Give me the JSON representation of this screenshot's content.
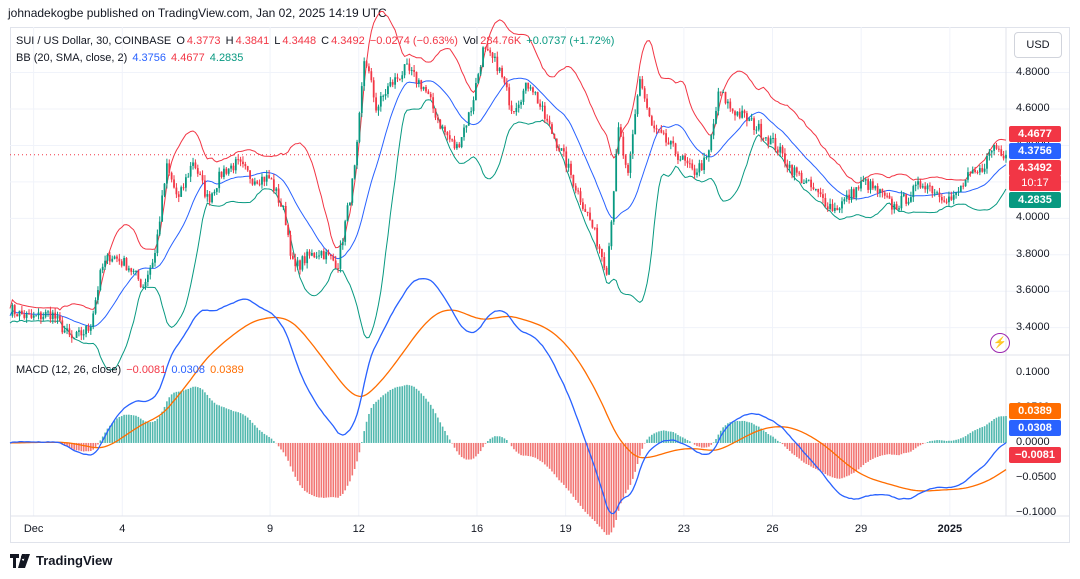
{
  "header": "johnadekogbe published on TradingView.com, Jan 02, 2025 14:19 UTC",
  "legend_main": {
    "symbol": "SUI / US Dollar, 30, COINBASE",
    "o_label": "O",
    "o": "4.3773",
    "h_label": "H",
    "h": "4.3841",
    "l_label": "L",
    "l": "4.3448",
    "c_label": "C",
    "c": "4.3492",
    "change": "−0.0274 (−0.63%)",
    "vol_label": "Vol",
    "vol": "284.76K",
    "vol_change": "+0.0737 (+1.72%)"
  },
  "legend_bb": {
    "label": "BB (20, SMA, close, 2)",
    "basis": "4.3756",
    "upper": "4.4677",
    "lower": "4.2835"
  },
  "legend_macd": {
    "label": "MACD (12, 26, close)",
    "hist": "−0.0081",
    "macd": "0.0308",
    "signal": "0.0389"
  },
  "currency_button": "USD",
  "price_badges": [
    {
      "text": "4.4677",
      "color": "#f23645"
    },
    {
      "text": "4.3756",
      "color": "#2962ff"
    },
    {
      "text": "4.3492",
      "color": "#f23645"
    },
    {
      "text": "10:17",
      "color": "#f23645"
    },
    {
      "text": "4.2835",
      "color": "#089981"
    }
  ],
  "macd_badges": [
    {
      "text": "0.0389",
      "color": "#ff6d00"
    },
    {
      "text": "0.0308",
      "color": "#2962ff"
    },
    {
      "text": "−0.0081",
      "color": "#f23645"
    }
  ],
  "footer": "TradingView",
  "colors": {
    "up": "#089981",
    "down": "#f23645",
    "bb_upper": "#f23645",
    "bb_lower": "#089981",
    "bb_basis": "#2962ff",
    "macd": "#2962ff",
    "signal": "#ff6d00"
  },
  "chart_data": [
    {
      "type": "candlestick",
      "title": "SUI / US Dollar, 30, COINBASE",
      "ylim": [
        3.25,
        5.05
      ],
      "y_ticks": [
        "4.8000",
        "4.6000",
        "4.4000",
        "4.2000",
        "4.0000",
        "3.8000",
        "3.6000",
        "3.4000"
      ],
      "y_tick_values": [
        4.8,
        4.6,
        4.4,
        4.2,
        4.0,
        3.8,
        3.6,
        3.4
      ],
      "x_ticks": [
        "Dec",
        "4",
        "9",
        "12",
        "16",
        "19",
        "23",
        "26",
        "29",
        "2025"
      ],
      "x_tick_days": [
        1,
        4,
        9,
        12,
        16,
        19,
        23,
        26,
        29,
        32
      ],
      "x_range_days": [
        0.2,
        33.9
      ],
      "last_price": 4.3492,
      "close_path_anchors": [
        [
          0.2,
          3.5
        ],
        [
          0.9,
          3.45
        ],
        [
          1.6,
          3.48
        ],
        [
          2.3,
          3.33
        ],
        [
          2.9,
          3.4
        ],
        [
          3.3,
          3.72
        ],
        [
          3.6,
          3.8
        ],
        [
          4.2,
          3.74
        ],
        [
          4.7,
          3.63
        ],
        [
          5.1,
          3.8
        ],
        [
          5.5,
          4.28
        ],
        [
          5.9,
          4.1
        ],
        [
          6.4,
          4.32
        ],
        [
          6.9,
          4.1
        ],
        [
          7.4,
          4.26
        ],
        [
          7.9,
          4.3
        ],
        [
          8.4,
          4.22
        ],
        [
          9.0,
          4.22
        ],
        [
          9.5,
          4.02
        ],
        [
          9.8,
          3.72
        ],
        [
          10.2,
          3.78
        ],
        [
          10.7,
          3.82
        ],
        [
          11.3,
          3.75
        ],
        [
          11.9,
          4.3
        ],
        [
          12.2,
          4.9
        ],
        [
          12.6,
          4.6
        ],
        [
          13.0,
          4.72
        ],
        [
          13.6,
          4.82
        ],
        [
          14.2,
          4.72
        ],
        [
          14.8,
          4.5
        ],
        [
          15.3,
          4.38
        ],
        [
          15.8,
          4.6
        ],
        [
          16.2,
          4.92
        ],
        [
          16.7,
          4.84
        ],
        [
          17.2,
          4.6
        ],
        [
          17.8,
          4.75
        ],
        [
          18.3,
          4.55
        ],
        [
          18.9,
          4.35
        ],
        [
          19.4,
          4.15
        ],
        [
          19.8,
          4.0
        ],
        [
          20.4,
          3.72
        ],
        [
          20.8,
          4.5
        ],
        [
          21.1,
          4.2
        ],
        [
          21.5,
          4.78
        ],
        [
          21.9,
          4.5
        ],
        [
          22.4,
          4.42
        ],
        [
          22.8,
          4.35
        ],
        [
          23.3,
          4.25
        ],
        [
          23.8,
          4.32
        ],
        [
          24.2,
          4.7
        ],
        [
          24.6,
          4.6
        ],
        [
          25.1,
          4.55
        ],
        [
          25.6,
          4.48
        ],
        [
          26.1,
          4.4
        ],
        [
          26.6,
          4.28
        ],
        [
          27.1,
          4.2
        ],
        [
          27.6,
          4.12
        ],
        [
          28.1,
          4.05
        ],
        [
          28.6,
          4.12
        ],
        [
          29.1,
          4.2
        ],
        [
          29.6,
          4.14
        ],
        [
          30.1,
          4.06
        ],
        [
          30.6,
          4.12
        ],
        [
          31.1,
          4.2
        ],
        [
          31.6,
          4.14
        ],
        [
          32.1,
          4.1
        ],
        [
          32.6,
          4.22
        ],
        [
          33.0,
          4.25
        ],
        [
          33.5,
          4.4
        ],
        [
          33.9,
          4.3492
        ]
      ]
    },
    {
      "type": "line",
      "title": "MACD (12, 26, close)",
      "ylim": [
        -0.105,
        0.125
      ],
      "y_ticks": [
        "0.1000",
        "0.0500",
        "0.0000",
        "−0.0500",
        "−0.1000"
      ],
      "y_tick_values": [
        0.1,
        0.05,
        0.0,
        -0.05,
        -0.1
      ],
      "series": [
        {
          "name": "MACD",
          "values": [
            0.0308
          ]
        },
        {
          "name": "Signal",
          "values": [
            0.0389
          ]
        },
        {
          "name": "Histogram",
          "values": [
            -0.0081
          ]
        }
      ]
    }
  ]
}
